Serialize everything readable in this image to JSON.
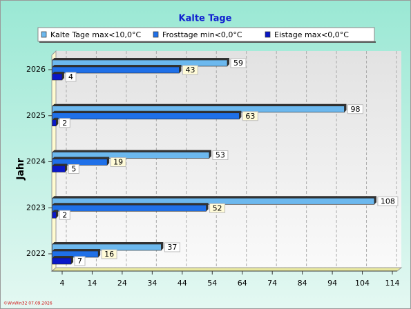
{
  "chart_data": {
    "type": "bar",
    "orientation": "horizontal",
    "title": "Kalte Tage",
    "y_label": "Jahr",
    "footer": "©WvWin32  07.09.2026",
    "categories": [
      "2026",
      "2025",
      "2024",
      "2023",
      "2022"
    ],
    "series": [
      {
        "name": "Kalte Tage max<10,0°C",
        "color": "#6cb8ee",
        "values": [
          59,
          98,
          53,
          108,
          37
        ]
      },
      {
        "name": "Frosttage min<0,0°C",
        "color": "#1f70e8",
        "values": [
          43,
          63,
          19,
          52,
          16
        ]
      },
      {
        "name": "Eistage max<0,0°C",
        "color": "#0a18c8",
        "values": [
          4,
          2,
          5,
          2,
          7
        ]
      }
    ],
    "xlim": [
      0,
      114
    ],
    "xticks": [
      4,
      14,
      24,
      34,
      44,
      54,
      64,
      74,
      84,
      94,
      104,
      114
    ],
    "grid": true
  }
}
